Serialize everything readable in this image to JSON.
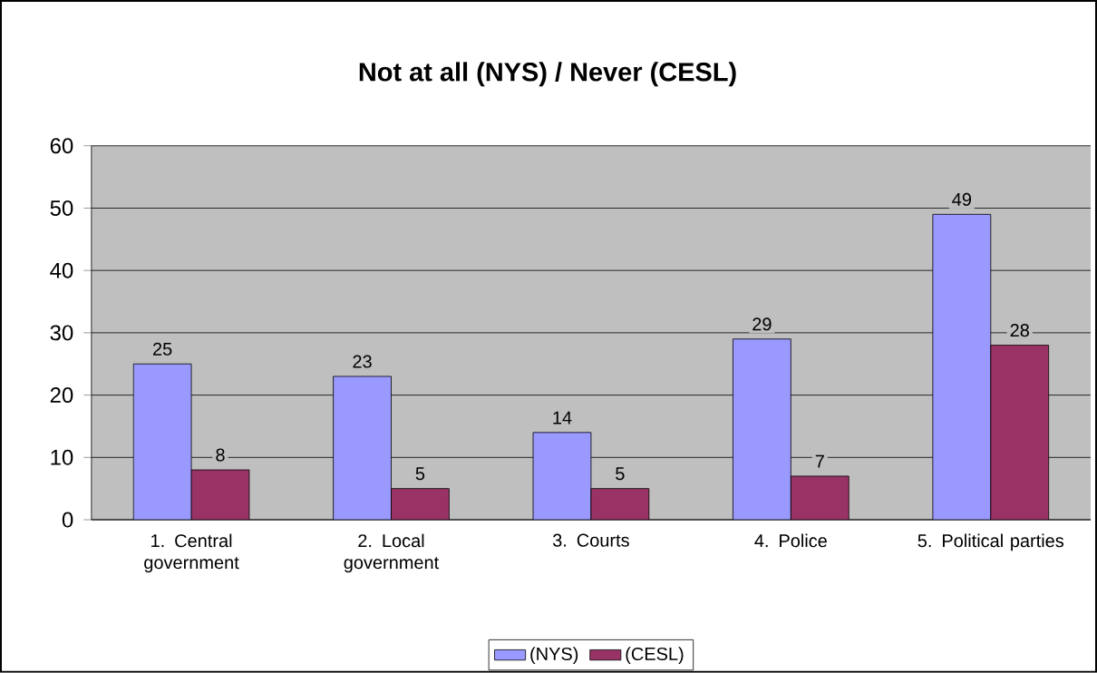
{
  "chart_data": {
    "type": "bar",
    "title": "Not at all (NYS) / Never (CESL)",
    "categories": [
      "1. Central government",
      "2. Local government",
      "3. Courts",
      "4. Police",
      "5. Political parties"
    ],
    "series": [
      {
        "name": "(NYS)",
        "color": "#9999ff",
        "values": [
          25,
          23,
          14,
          29,
          49
        ]
      },
      {
        "name": "(CESL)",
        "color": "#993366",
        "values": [
          8,
          5,
          5,
          7,
          28
        ]
      }
    ],
    "ylim": [
      0,
      60
    ],
    "yticks": [
      0,
      10,
      20,
      30,
      40,
      50,
      60
    ],
    "grid": "y",
    "legend": "bottom",
    "data_labels": true
  }
}
